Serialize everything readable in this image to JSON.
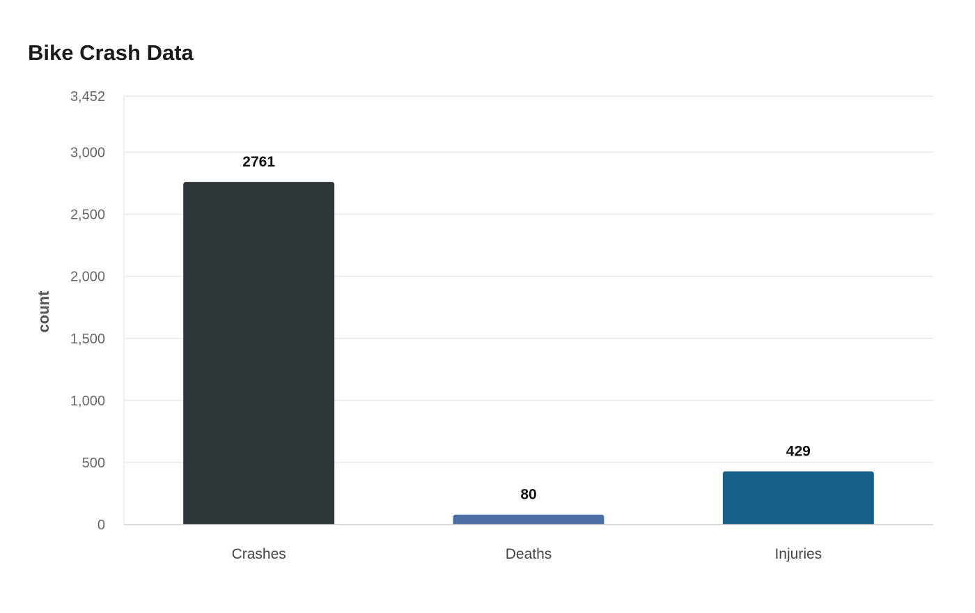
{
  "chart_data": {
    "type": "bar",
    "title": "Bike Crash Data",
    "xlabel": "",
    "ylabel": "count",
    "categories": [
      "Crashes",
      "Deaths",
      "Injuries"
    ],
    "values": [
      2761,
      80,
      429
    ],
    "value_labels": [
      "2761",
      "80",
      "429"
    ],
    "colors": [
      "#2e3538",
      "#4a6fa5",
      "#166087"
    ],
    "ylim": [
      0,
      3452
    ],
    "yticks": [
      0,
      500,
      1000,
      1500,
      2000,
      2500,
      3000,
      3452
    ],
    "ytick_labels": [
      "0",
      "500",
      "1,000",
      "1,500",
      "2,000",
      "2,500",
      "3,000",
      "3,452"
    ],
    "grid": true,
    "legend": "none"
  }
}
